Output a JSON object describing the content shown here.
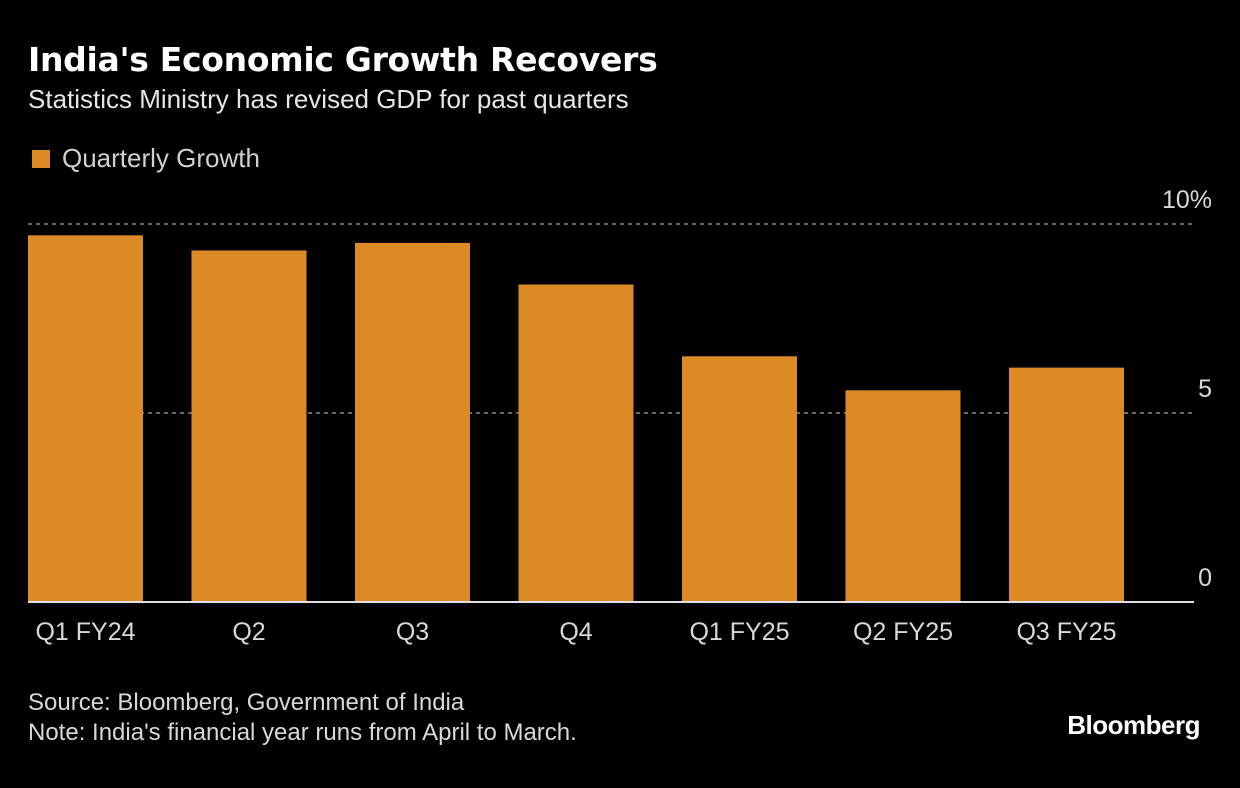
{
  "header": {
    "title": "India's Economic Growth Recovers",
    "subtitle": "Statistics Ministry has revised GDP for past quarters"
  },
  "legend": {
    "label": "Quarterly Growth",
    "color": "#dc8a26"
  },
  "footer": {
    "source": "Source: Bloomberg, Government of India",
    "note": "Note: India's financial year runs from April to March."
  },
  "logo": "Bloomberg",
  "chart_data": {
    "type": "bar",
    "title": "India's Economic Growth Recovers",
    "subtitle": "Statistics Ministry has revised GDP for past quarters",
    "xlabel": "",
    "ylabel": "",
    "categories": [
      "Q1 FY24",
      "Q2",
      "Q3",
      "Q4",
      "Q1 FY25",
      "Q2 FY25",
      "Q3 FY25"
    ],
    "series": [
      {
        "name": "Quarterly Growth",
        "color": "#dc8a26",
        "values": [
          9.7,
          9.3,
          9.5,
          8.4,
          6.5,
          5.6,
          6.2
        ]
      }
    ],
    "ylim": [
      0,
      10
    ],
    "yticks": [
      0,
      5,
      10
    ],
    "ytick_labels": [
      "0",
      "5",
      "10%"
    ],
    "y_axis_side": "right",
    "grid": true,
    "grid_style": "dotted",
    "legend_position": "top-left"
  }
}
